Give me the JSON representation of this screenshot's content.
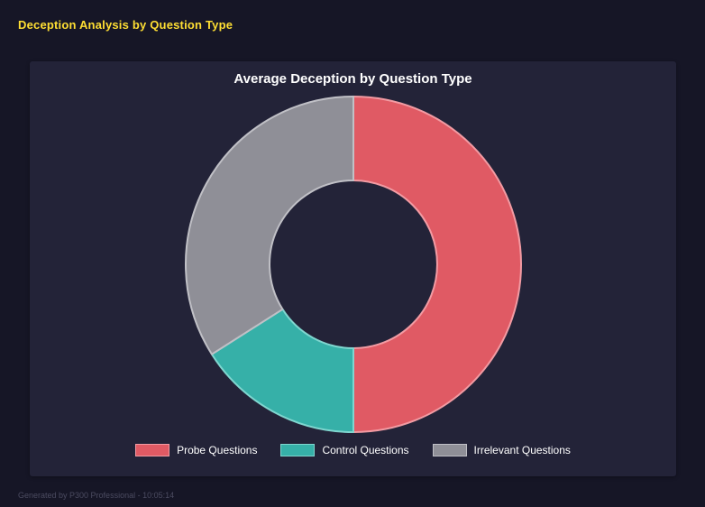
{
  "header": {
    "title": "Deception Analysis by Question Type"
  },
  "chart_data": {
    "type": "pie",
    "title": "Average Deception by Question Type",
    "donut": true,
    "donut_hole_ratio": 0.5,
    "start_angle_deg": 0,
    "direction": "clockwise",
    "legend_position": "bottom",
    "segments": [
      {
        "label": "Probe Questions",
        "value": 50,
        "color": "#e05a64",
        "edge": "#f29ba3"
      },
      {
        "label": "Control Questions",
        "value": 16,
        "color": "#36b0a8",
        "edge": "#7fd6cf"
      },
      {
        "label": "Irrelevant Questions",
        "value": 34,
        "color": "#8f8f97",
        "edge": "#c0c0c6"
      }
    ]
  },
  "colors": {
    "accent_yellow": "#ffdf33",
    "page_background": "#161626",
    "panel_background": "#232338"
  },
  "footer": {
    "text": "Generated by P300 Professional - 10:05:14"
  }
}
